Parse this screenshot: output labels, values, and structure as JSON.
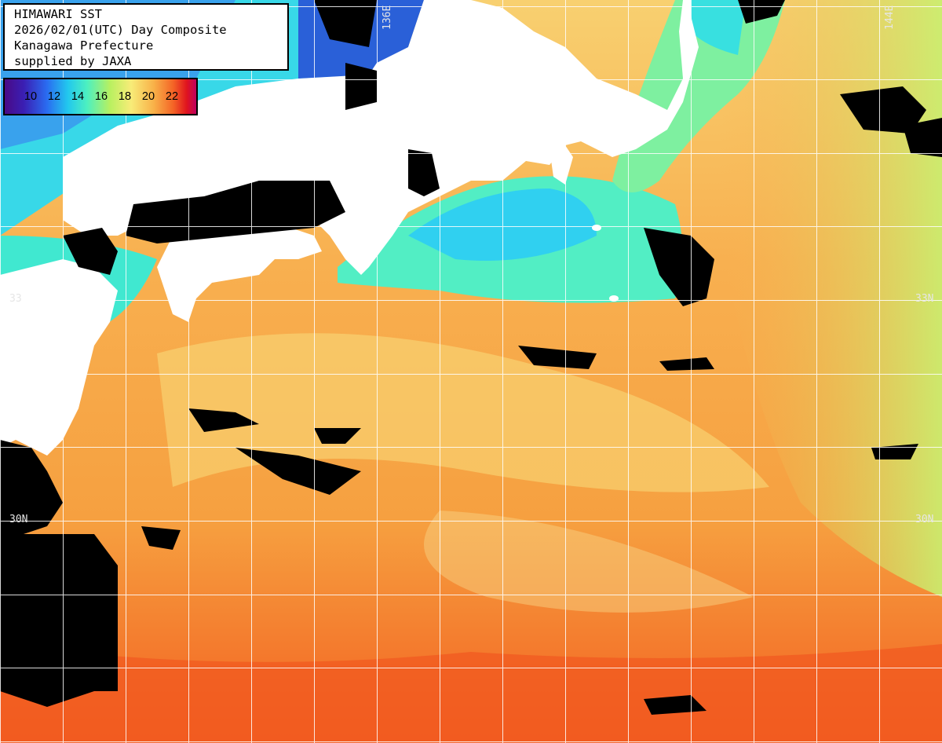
{
  "title_box": {
    "line1": "HIMAWARI SST",
    "line2": "2026/02/01(UTC) Day Composite",
    "line3": "Kanagawa Prefecture",
    "line4": "supplied by JAXA"
  },
  "legend": {
    "ticks": [
      "10",
      "12",
      "14",
      "16",
      "18",
      "20",
      "22"
    ],
    "min_color": "#4a0a86",
    "max_color": "#c00060"
  },
  "grid_labels": {
    "lon_136": "136E",
    "lon_144": "144E",
    "lat_33_left": "33",
    "lat_33_right": "33N",
    "lat_30_left": "30N",
    "lat_30_right": "30N"
  },
  "colors": {
    "land": "#ffffff",
    "cloud": "#000000",
    "grid": "#ffffff",
    "sea_warm": "#f7a64a",
    "sea_warmer": "#f46a2a",
    "sea_cool": "#5ef0c8",
    "sea_mid": "#f8e07a"
  }
}
